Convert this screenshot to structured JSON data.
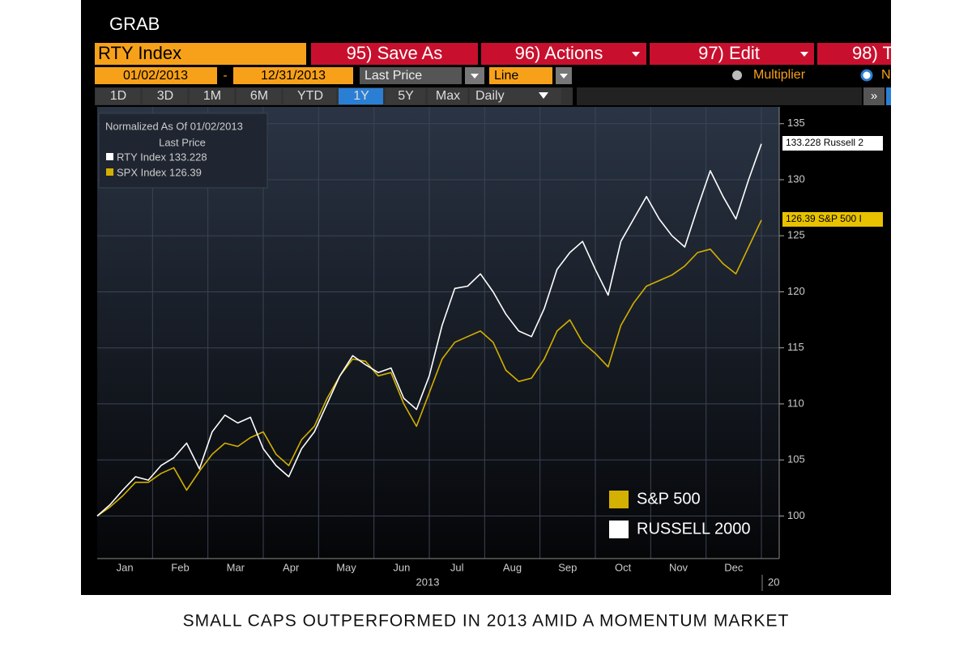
{
  "header": {
    "title": "GRAB"
  },
  "toolbar": {
    "security": "RTY Index",
    "buttons": [
      "95) Save As",
      "96) Actions",
      "97) Edit",
      "98) T"
    ],
    "start_date": "01/02/2013",
    "dash": "-",
    "end_date": "12/31/2013",
    "field": "Last Price",
    "style": "Line",
    "multiplier": "Multiplier",
    "other_option": "N",
    "ranges": [
      "1D",
      "3D",
      "1M",
      "6M",
      "YTD",
      "1Y",
      "5Y",
      "Max",
      "Daily"
    ],
    "active_range": "1Y",
    "more": "»"
  },
  "info_box": {
    "line1": "Normalized As Of 01/02/2013",
    "line2": "Last Price",
    "rty": "RTY Index 133.228",
    "spx": "SPX Index 126.39"
  },
  "right_tags": {
    "rty": "133.228 Russell 2",
    "spx": "126.39  S&P 500 I"
  },
  "chart_data": {
    "type": "line",
    "month_labels": [
      "Jan",
      "Feb",
      "Mar",
      "Apr",
      "May",
      "Jun",
      "Jul",
      "Aug",
      "Sep",
      "Oct",
      "Nov",
      "Dec"
    ],
    "year_label": "2013",
    "next_year_label": "20",
    "ylim": [
      96.2,
      136.5
    ],
    "yticks": [
      100,
      105,
      110,
      115,
      120,
      125,
      130,
      135
    ],
    "grid": true,
    "series": [
      {
        "name": "RUSSELL 2000",
        "color": "#ffffff",
        "values": [
          100,
          101,
          102.3,
          103.5,
          103.2,
          104.5,
          105.2,
          106.5,
          104.2,
          107.5,
          109,
          108.3,
          108.8,
          106,
          104.5,
          103.5,
          106,
          107.5,
          110,
          112.5,
          114.3,
          113.5,
          112.8,
          113.2,
          110.5,
          109.5,
          112.5,
          117,
          120.3,
          120.5,
          121.6,
          120,
          118,
          116.5,
          116,
          118.5,
          122,
          123.5,
          124.5,
          122,
          119.7,
          124.5,
          126.5,
          128.5,
          126.5,
          125,
          124,
          127.5,
          130.8,
          128.5,
          126.5,
          130,
          133.2
        ]
      },
      {
        "name": "S&P 500",
        "color": "#d4b000",
        "values": [
          100,
          100.8,
          101.8,
          103,
          103,
          103.8,
          104.3,
          102.3,
          104,
          105.5,
          106.5,
          106.2,
          107,
          107.5,
          105.5,
          104.5,
          106.8,
          108,
          110.5,
          112.5,
          114,
          113.8,
          112.5,
          112.8,
          110,
          108,
          111,
          114,
          115.5,
          116,
          116.5,
          115.5,
          113,
          112,
          112.3,
          114,
          116.5,
          117.5,
          115.5,
          114.5,
          113.3,
          117,
          119,
          120.5,
          121,
          121.5,
          122.3,
          123.5,
          123.8,
          122.5,
          121.6,
          124,
          126.4
        ]
      }
    ]
  },
  "caption": "SMALL CAPS OUTPERFORMED IN 2013 AMID A MOMENTUM MARKET"
}
